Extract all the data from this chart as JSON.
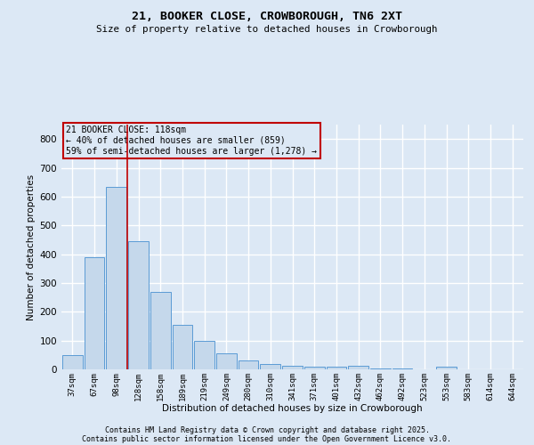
{
  "title": "21, BOOKER CLOSE, CROWBOROUGH, TN6 2XT",
  "subtitle": "Size of property relative to detached houses in Crowborough",
  "xlabel": "Distribution of detached houses by size in Crowborough",
  "ylabel": "Number of detached properties",
  "categories": [
    "37sqm",
    "67sqm",
    "98sqm",
    "128sqm",
    "158sqm",
    "189sqm",
    "219sqm",
    "249sqm",
    "280sqm",
    "310sqm",
    "341sqm",
    "371sqm",
    "401sqm",
    "432sqm",
    "462sqm",
    "492sqm",
    "523sqm",
    "553sqm",
    "583sqm",
    "614sqm",
    "644sqm"
  ],
  "values": [
    50,
    390,
    635,
    445,
    270,
    155,
    100,
    57,
    30,
    20,
    12,
    8,
    8,
    12,
    4,
    2,
    1,
    8,
    1,
    1,
    0
  ],
  "bar_color": "#c5d8eb",
  "bar_edge_color": "#5b9bd5",
  "background_color": "#dce8f5",
  "grid_color": "#ffffff",
  "vline_x": 2.5,
  "vline_color": "#c00000",
  "annotation_text": "21 BOOKER CLOSE: 118sqm\n← 40% of detached houses are smaller (859)\n59% of semi-detached houses are larger (1,278) →",
  "annotation_box_color": "#c00000",
  "ylim": [
    0,
    850
  ],
  "yticks": [
    0,
    100,
    200,
    300,
    400,
    500,
    600,
    700,
    800
  ],
  "footnote1": "Contains HM Land Registry data © Crown copyright and database right 2025.",
  "footnote2": "Contains public sector information licensed under the Open Government Licence v3.0."
}
